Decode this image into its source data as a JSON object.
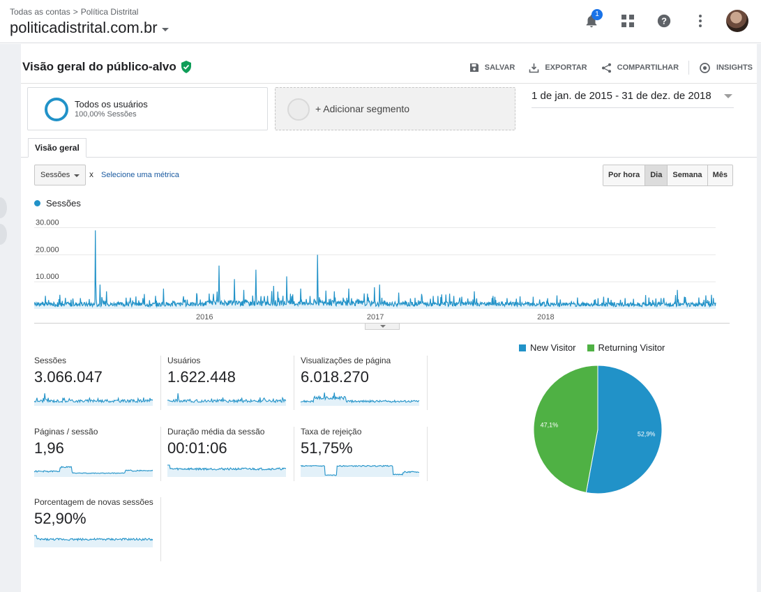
{
  "header": {
    "breadcrumb": [
      "Todas as contas",
      "Política Distrital"
    ],
    "account_name": "politicadistrital.com.br",
    "notification_count": "1",
    "icons": [
      "bell-icon",
      "apps-grid-icon",
      "help-icon",
      "more-vert-icon",
      "avatar"
    ]
  },
  "report": {
    "title": "Visão geral do público-alvo",
    "actions": [
      {
        "label": "SALVAR",
        "icon": "save-icon"
      },
      {
        "label": "EXPORTAR",
        "icon": "export-icon"
      },
      {
        "label": "COMPARTILHAR",
        "icon": "share-icon"
      },
      {
        "label": "INSIGHTS",
        "icon": "insights-icon"
      }
    ]
  },
  "segments": {
    "active": {
      "name": "Todos os usuários",
      "sub": "100,00% Sessões"
    },
    "add_label": "+ Adicionar segmento"
  },
  "date_range": "1 de jan. de 2015 - 31 de dez. de 2018",
  "tabs": [
    "Visão geral"
  ],
  "metric_selector": {
    "selected": "Sessões",
    "versus": "x",
    "select_metric": "Selecione uma métrica"
  },
  "granularity": {
    "options": [
      "Por hora",
      "Dia",
      "Semana",
      "Mês"
    ],
    "active": "Dia"
  },
  "colors": {
    "primary": "#2192c8",
    "returning": "#4fb144",
    "area_fill": "#e3f1f9"
  },
  "chart_data": [
    {
      "type": "line",
      "series": [
        {
          "name": "Sessões",
          "color": "#2192c8"
        }
      ],
      "y_ticks": [
        "10.000",
        "20.000",
        "30.000"
      ],
      "y_tick_values": [
        10000,
        20000,
        30000
      ],
      "ylim": [
        0,
        34000
      ],
      "x_ticks": [
        "2016",
        "2017",
        "2018"
      ],
      "x_tick_values": [
        "2016-01-01",
        "2017-01-01",
        "2018-01-01"
      ],
      "xlim": [
        "2015-01-01",
        "2018-12-31"
      ],
      "spikes": [
        [
          "2015-01-20",
          2500
        ],
        [
          "2015-02-25",
          5200
        ],
        [
          "2015-04-10",
          4000
        ],
        [
          "2015-05-12",
          29000
        ],
        [
          "2015-05-22",
          9000
        ],
        [
          "2015-06-05",
          6500
        ],
        [
          "2015-08-25",
          5500
        ],
        [
          "2015-10-05",
          7500
        ],
        [
          "2015-12-15",
          5800
        ],
        [
          "2016-02-01",
          16000
        ],
        [
          "2016-03-05",
          11000
        ],
        [
          "2016-03-25",
          7000
        ],
        [
          "2016-04-20",
          14500
        ],
        [
          "2016-05-28",
          8500
        ],
        [
          "2016-06-25",
          12000
        ],
        [
          "2016-07-25",
          7500
        ],
        [
          "2016-08-30",
          20000
        ],
        [
          "2016-10-05",
          6500
        ],
        [
          "2016-11-05",
          7500
        ],
        [
          "2016-12-30",
          8000
        ],
        [
          "2017-01-10",
          9000
        ],
        [
          "2017-02-20",
          6000
        ],
        [
          "2017-04-10",
          5500
        ],
        [
          "2017-05-15",
          4800
        ],
        [
          "2017-07-05",
          4500
        ],
        [
          "2017-08-01",
          6500
        ],
        [
          "2017-09-10",
          4800
        ],
        [
          "2017-10-10",
          4000
        ],
        [
          "2017-12-05",
          4500
        ],
        [
          "2018-01-25",
          5000
        ],
        [
          "2018-03-10",
          4200
        ],
        [
          "2018-05-05",
          4500
        ],
        [
          "2018-06-20",
          4000
        ],
        [
          "2018-08-10",
          4200
        ],
        [
          "2018-09-05",
          4000
        ],
        [
          "2018-10-10",
          7000
        ],
        [
          "2018-10-25",
          4500
        ],
        [
          "2018-11-25",
          4200
        ],
        [
          "2018-12-10",
          5000
        ],
        [
          "2018-12-22",
          5200
        ]
      ]
    },
    {
      "type": "pie",
      "labels": [
        "New Visitor",
        "Returning Visitor"
      ],
      "values": [
        52.9,
        47.1
      ],
      "value_labels": [
        "52,9%",
        "47,1%"
      ],
      "colors": [
        "#2192c8",
        "#4fb144"
      ]
    }
  ],
  "kpis": [
    {
      "label": "Sessões",
      "value": "3.066.047",
      "spark": "sessions"
    },
    {
      "label": "Usuários",
      "value": "1.622.448",
      "spark": "sessions"
    },
    {
      "label": "Visualizações de página",
      "value": "6.018.270",
      "spark": "pageviews"
    },
    {
      "label": "Páginas / sessão",
      "value": "1,96",
      "spark": "pages"
    },
    {
      "label": "Duração média da sessão",
      "value": "00:01:06",
      "spark": "flat"
    },
    {
      "label": "Taxa de rejeição",
      "value": "51,75%",
      "spark": "bounce"
    },
    {
      "label": "Porcentagem de novas sessões",
      "value": "52,90%",
      "spark": "flat"
    }
  ]
}
